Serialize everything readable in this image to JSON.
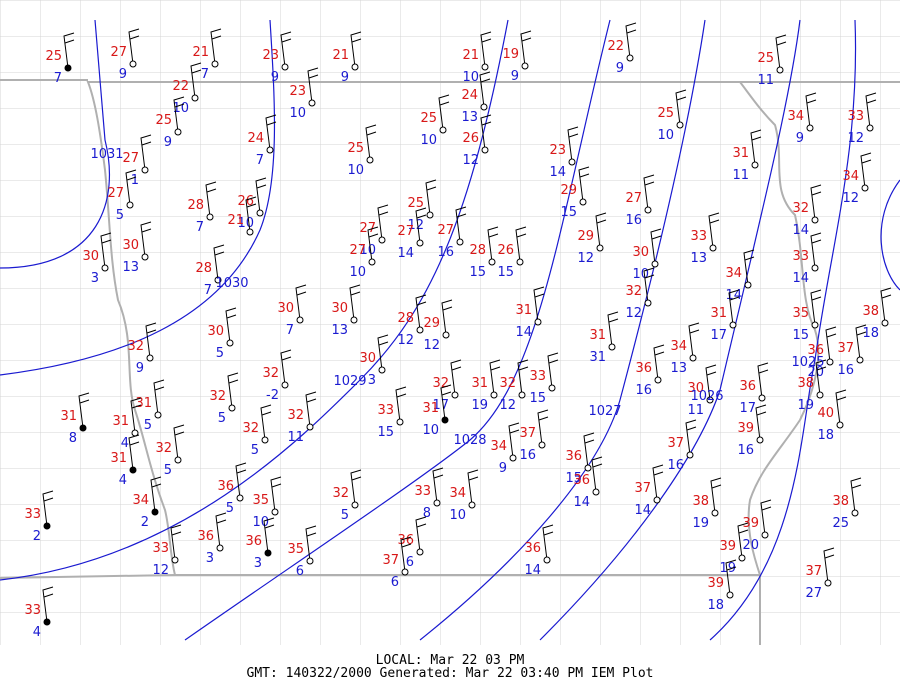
{
  "stations": [
    {
      "temp": 25,
      "dew": 7
    },
    {
      "temp": 27,
      "dew": 9
    },
    {
      "temp": 21,
      "dew": 7
    },
    {
      "temp": 23,
      "dew": 9
    },
    {
      "temp": 21,
      "dew": 9
    },
    {
      "temp": 21,
      "dew": 10
    },
    {
      "temp": 19,
      "dew": 9
    },
    {
      "temp": 22,
      "dew": 9
    },
    {
      "temp": 25,
      "dew": 11
    },
    {
      "temp": 22,
      "dew": 10
    },
    {
      "temp": 23,
      "dew": 10
    },
    {
      "temp": 24,
      "dew": 13
    },
    {
      "temp": 25,
      "dew": 9
    },
    {
      "temp": 25,
      "dew": 10
    },
    {
      "temp": 26,
      "dew": 12
    },
    {
      "temp": 25,
      "dew": 10
    },
    {
      "temp": 34,
      "dew": 9
    },
    {
      "temp": 33,
      "dew": 12
    },
    {
      "temp": 24,
      "dew": 7
    },
    {
      "temp": 25,
      "dew": 10
    },
    {
      "temp": 23,
      "dew": 14
    },
    {
      "temp": 31,
      "dew": 11
    },
    {
      "temp": 27,
      "dew": 1
    },
    {
      "temp": 34,
      "dew": 12
    },
    {
      "temp": 27,
      "dew": 5
    },
    {
      "temp": 28,
      "dew": 7
    },
    {
      "temp": 26,
      "dew": 10
    },
    {
      "temp": 21
    },
    {
      "temp": 25,
      "dew": 12
    },
    {
      "temp": 29,
      "dew": 15
    },
    {
      "temp": 27,
      "dew": 16
    },
    {
      "temp": 32,
      "dew": 14
    },
    {
      "temp": 30,
      "dew": 13
    },
    {
      "temp": 30,
      "dew": 3
    },
    {
      "temp": 27,
      "dew": 10
    },
    {
      "temp": 27,
      "dew": 10
    },
    {
      "temp": 27,
      "dew": 14
    },
    {
      "temp": 27,
      "dew": 16
    },
    {
      "temp": 28,
      "dew": 15
    },
    {
      "temp": 26,
      "dew": 15
    },
    {
      "temp": 29,
      "dew": 12
    },
    {
      "temp": 30,
      "dew": 10
    },
    {
      "temp": 33,
      "dew": 13
    },
    {
      "temp": 33,
      "dew": 14
    },
    {
      "temp": 28,
      "dew": 7
    },
    {
      "temp": 32,
      "dew": 12
    },
    {
      "temp": 34,
      "dew": 14
    },
    {
      "temp": 31,
      "dew": 14
    },
    {
      "temp": 30,
      "dew": 5
    },
    {
      "temp": 30,
      "dew": 7
    },
    {
      "temp": 30,
      "dew": 13
    },
    {
      "temp": 28,
      "dew": 12
    },
    {
      "temp": 29,
      "dew": 12
    },
    {
      "temp": 31,
      "dew": 31
    },
    {
      "temp": 31,
      "dew": 17
    },
    {
      "temp": 35,
      "dew": 15
    },
    {
      "temp": 38,
      "dew": 18
    },
    {
      "temp": 32,
      "dew": 9
    },
    {
      "temp": 30,
      "dew": 3
    },
    {
      "temp": 34,
      "dew": 13
    },
    {
      "temp": 36,
      "dew": 16
    },
    {
      "temp": 36,
      "dew": 20
    },
    {
      "temp": 37,
      "dew": 16
    },
    {
      "temp": 32,
      "dew": -2
    },
    {
      "temp": 32,
      "dew": 5
    },
    {
      "temp": 31,
      "dew": 19
    },
    {
      "temp": 32,
      "dew": 12
    },
    {
      "temp": 33,
      "dew": 15
    },
    {
      "temp": 32,
      "dew": 17
    },
    {
      "temp": 31,
      "dew": 10
    },
    {
      "temp": 30,
      "dew": 11
    },
    {
      "temp": 36,
      "dew": 17
    },
    {
      "temp": 38,
      "dew": 19
    },
    {
      "temp": 40,
      "dew": 18
    },
    {
      "temp": 31,
      "dew": 8
    },
    {
      "temp": 31,
      "dew": 5
    },
    {
      "temp": 31,
      "dew": 4
    },
    {
      "temp": 32,
      "dew": 11
    },
    {
      "temp": 32,
      "dew": 5
    },
    {
      "temp": 33,
      "dew": 15
    },
    {
      "temp": 37,
      "dew": 16
    },
    {
      "temp": 34,
      "dew": 9
    },
    {
      "temp": 39,
      "dew": 16
    },
    {
      "temp": 32,
      "dew": 5
    },
    {
      "temp": 31,
      "dew": 4
    },
    {
      "temp": 36,
      "dew": 15
    },
    {
      "temp": 36,
      "dew": 14
    },
    {
      "temp": 37,
      "dew": 16
    },
    {
      "temp": 34,
      "dew": 2
    },
    {
      "temp": 36,
      "dew": 5
    },
    {
      "temp": 35,
      "dew": 10
    },
    {
      "temp": 32,
      "dew": 5
    },
    {
      "temp": 33,
      "dew": 8
    },
    {
      "temp": 34,
      "dew": 10
    },
    {
      "temp": 37,
      "dew": 14
    },
    {
      "temp": 38,
      "dew": 19
    },
    {
      "temp": 38,
      "dew": 25
    },
    {
      "temp": 33,
      "dew": 2
    },
    {
      "temp": 36,
      "dew": 3
    },
    {
      "temp": 36,
      "dew": 3
    },
    {
      "temp": 35,
      "dew": 6
    },
    {
      "temp": 36,
      "dew": 6
    },
    {
      "temp": 37,
      "dew": 6
    },
    {
      "temp": 36,
      "dew": 14
    },
    {
      "temp": 39,
      "dew": 20
    },
    {
      "temp": 39,
      "dew": 19
    },
    {
      "temp": 33,
      "dew": 12
    },
    {
      "temp": 39,
      "dew": 18
    },
    {
      "temp": 37,
      "dew": 27
    },
    {
      "temp": 33,
      "dew": 4
    }
  ],
  "isobars": [
    "1031",
    "1030",
    "1029",
    "1028",
    "1027",
    "1026",
    "1025"
  ],
  "footer": {
    "local": "LOCAL: Mar 22 03 PM",
    "gmt": "GMT: 140322/2000 Generated: Mar 22 03:40 PM IEM Plot"
  }
}
